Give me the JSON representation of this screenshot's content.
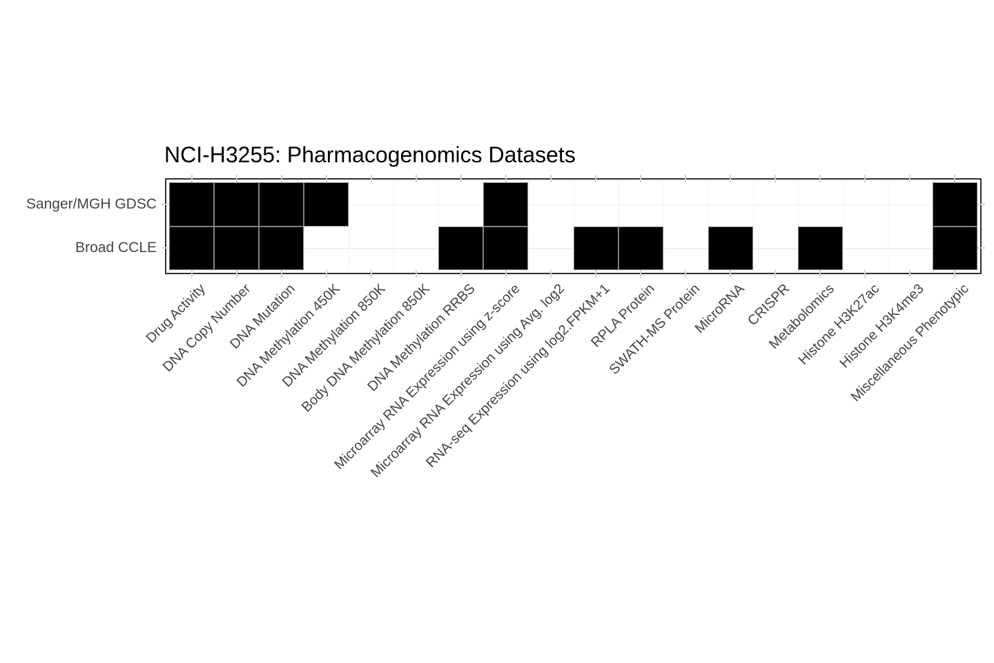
{
  "title": "NCI-H3255: Pharmacogenomics Datasets",
  "chart_data": {
    "type": "heatmap",
    "title": "NCI-H3255: Pharmacogenomics Datasets",
    "rows": [
      "Sanger/MGH GDSC",
      "Broad CCLE"
    ],
    "columns": [
      "Drug Activity",
      "DNA Copy Number",
      "DNA Mutation",
      "DNA Methylation 450K",
      "DNA Methylation 850K",
      "Body DNA Methylation 850K",
      "DNA Methylation RRBS",
      "Microarray RNA Expression using z-score",
      "Microarray RNA Expression using Avg. log2",
      "RNA-seq Expression using log2.FPKM+1",
      "RPLA Protein",
      "SWATH-MS Protein",
      "MicroRNA",
      "CRISPR",
      "Metabolomics",
      "Histone H3K27ac",
      "Histone H3K4me3",
      "Miscellaneous Phenotypic"
    ],
    "series": [
      {
        "name": "Sanger/MGH GDSC",
        "values": [
          1,
          1,
          1,
          1,
          0,
          0,
          0,
          1,
          0,
          0,
          0,
          0,
          0,
          0,
          0,
          0,
          0,
          1
        ]
      },
      {
        "name": "Broad CCLE",
        "values": [
          1,
          1,
          1,
          0,
          0,
          0,
          1,
          1,
          0,
          1,
          1,
          0,
          1,
          0,
          1,
          0,
          0,
          1
        ]
      }
    ],
    "value_meaning": "1 = dataset available (filled black cell), 0 = not available (white cell)",
    "legend_position": "none",
    "grid": "faint",
    "colors": {
      "cell_fill": "#000000",
      "cell_stroke": "#838383",
      "panel_border": "#2e2e2e",
      "tick": "#d2d2d2",
      "gridline": "#f2f2f2",
      "axis_label": "#444444",
      "title": "#000000",
      "background": "#ffffff"
    }
  }
}
